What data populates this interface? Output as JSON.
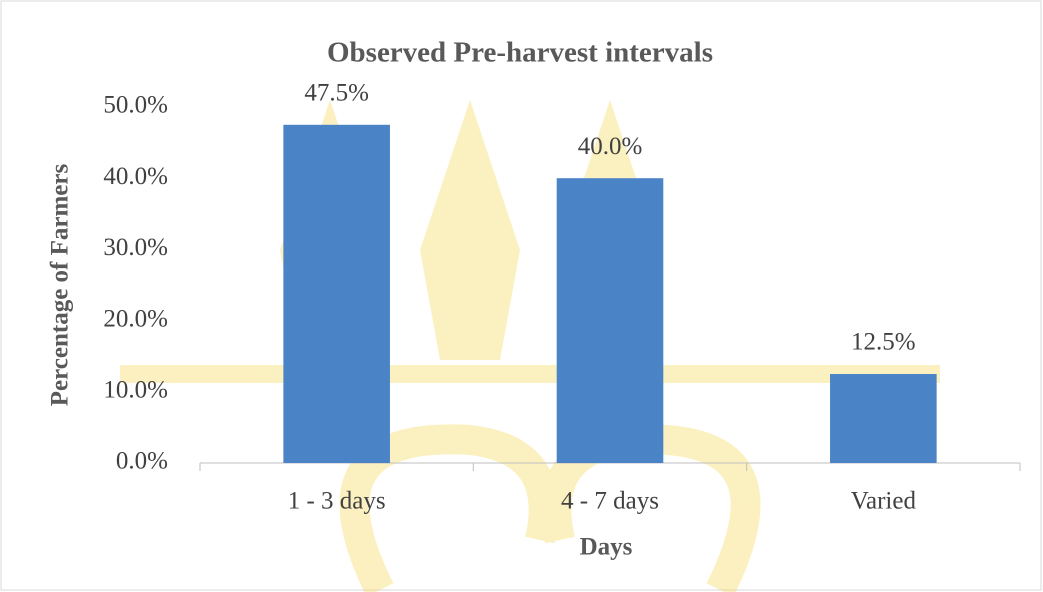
{
  "chart_data": {
    "type": "bar",
    "title": "Observed Pre-harvest intervals",
    "x_label": "Days",
    "y_label": "Percentage of Farmers",
    "categories": [
      "1 - 3 days",
      "4 - 7 days",
      "Varied"
    ],
    "values": [
      47.5,
      40.0,
      12.5
    ],
    "value_labels": [
      "47.5%",
      "40.0%",
      "12.5%"
    ],
    "color": "#4a84c6",
    "ylim": [
      0,
      50
    ],
    "yticks": [
      {
        "value": 0,
        "label": "0.0%"
      },
      {
        "value": 10,
        "label": "10.0%"
      },
      {
        "value": 20,
        "label": "20.0%"
      },
      {
        "value": 30,
        "label": "30.0%"
      },
      {
        "value": 40,
        "label": "40.0%"
      },
      {
        "value": 50,
        "label": "50.0%"
      }
    ],
    "grid": false
  }
}
